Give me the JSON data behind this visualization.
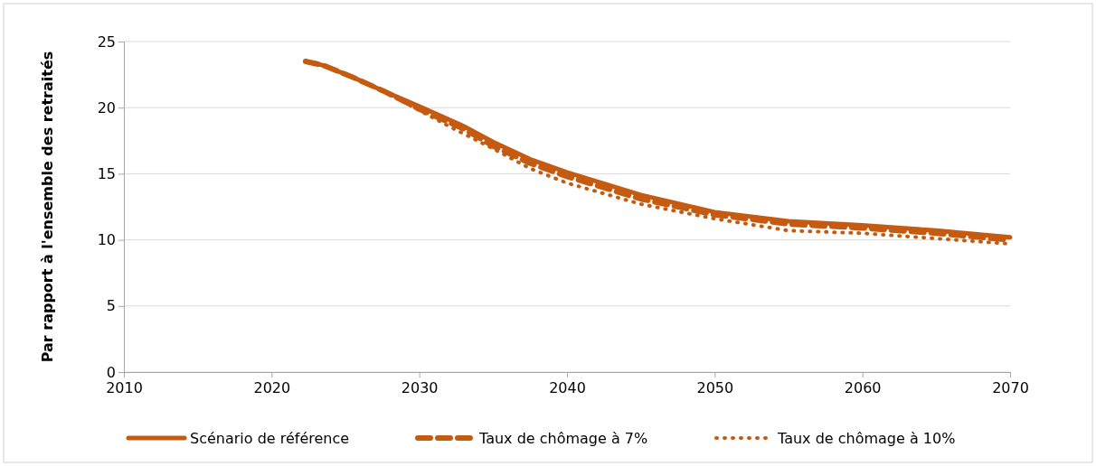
{
  "chart_data": {
    "type": "line",
    "ylabel": "Par rapport à l'ensemble des retraités",
    "xlim": [
      2010,
      2070
    ],
    "xticks": [
      2010,
      2020,
      2030,
      2040,
      2050,
      2060,
      2070
    ],
    "ylim": [
      0,
      25
    ],
    "yticks": [
      0,
      5,
      10,
      15,
      20,
      25
    ],
    "grid": "y",
    "legend": "bottom",
    "series": [
      {
        "name": "Scénario de référence",
        "color": "#c55a11",
        "line_style": "solid",
        "x": [
          2022.3,
          2023.5,
          2025.5,
          2027.5,
          2030,
          2033,
          2035,
          2037.5,
          2040,
          2045,
          2050,
          2055,
          2060,
          2065,
          2070
        ],
        "values": [
          23.5,
          23.2,
          22.3,
          21.3,
          20.1,
          18.6,
          17.4,
          16.1,
          15.1,
          13.4,
          12.1,
          11.4,
          11.1,
          10.7,
          10.2
        ]
      },
      {
        "name": "Taux de chômage à 7%",
        "color": "#c55a11",
        "line_style": "dashed",
        "x": [
          2022.3,
          2023.5,
          2025.5,
          2027.5,
          2030,
          2033,
          2035,
          2037.5,
          2040,
          2045,
          2050,
          2055,
          2060,
          2065,
          2070
        ],
        "values": [
          23.5,
          23.2,
          22.3,
          21.3,
          19.9,
          18.4,
          17.1,
          15.8,
          14.8,
          13.1,
          11.9,
          11.2,
          10.9,
          10.5,
          10.0
        ]
      },
      {
        "name": "Taux de chômage à 10%",
        "color": "#c55a11",
        "line_style": "dotted",
        "x": [
          2022.3,
          2023.5,
          2025.5,
          2027.5,
          2030,
          2032,
          2035,
          2037.5,
          2040,
          2045,
          2050,
          2055,
          2060,
          2065,
          2070
        ],
        "values": [
          23.5,
          23.2,
          22.3,
          21.3,
          19.8,
          18.6,
          16.9,
          15.4,
          14.3,
          12.7,
          11.6,
          10.7,
          10.5,
          10.1,
          9.7
        ]
      }
    ]
  }
}
